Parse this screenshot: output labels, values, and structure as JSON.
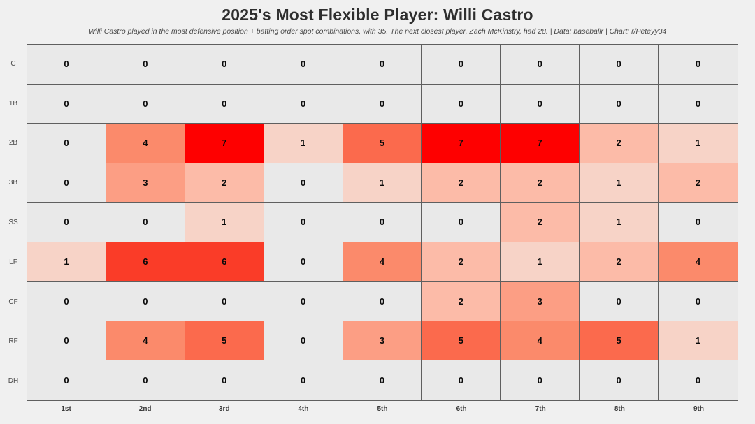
{
  "header": {
    "title": "2025's Most Flexible Player: Willi Castro",
    "subtitle": "Willi Castro played in the most defensive position + batting order spot combinations, with 35. The next closest player, Zach McKinstry, had 28. | Data: baseballr | Chart: r/Peteyy34"
  },
  "chart_data": {
    "type": "heatmap",
    "title": "2025's Most Flexible Player: Willi Castro",
    "subtitle": "Willi Castro played in the most defensive position + batting order spot combinations, with 35. The next closest player, Zach McKinstry, had 28. | Data: baseballr | Chart: r/Peteyy34",
    "xlabel": "",
    "ylabel": "",
    "rows": [
      "C",
      "1B",
      "2B",
      "3B",
      "SS",
      "LF",
      "CF",
      "RF",
      "DH"
    ],
    "columns": [
      "1st",
      "2nd",
      "3rd",
      "4th",
      "5th",
      "6th",
      "7th",
      "8th",
      "9th"
    ],
    "values": [
      [
        0,
        0,
        0,
        0,
        0,
        0,
        0,
        0,
        0
      ],
      [
        0,
        0,
        0,
        0,
        0,
        0,
        0,
        0,
        0
      ],
      [
        0,
        4,
        7,
        1,
        5,
        7,
        7,
        2,
        1
      ],
      [
        0,
        3,
        2,
        0,
        1,
        2,
        2,
        1,
        2
      ],
      [
        0,
        0,
        1,
        0,
        0,
        0,
        2,
        1,
        0
      ],
      [
        1,
        6,
        6,
        0,
        4,
        2,
        1,
        2,
        4
      ],
      [
        0,
        0,
        0,
        0,
        0,
        2,
        3,
        0,
        0
      ],
      [
        0,
        4,
        5,
        0,
        3,
        5,
        4,
        5,
        1
      ],
      [
        0,
        0,
        0,
        0,
        0,
        0,
        0,
        0,
        0
      ]
    ],
    "value_range": [
      0,
      7
    ],
    "colormap": "Reds",
    "value_colors": {
      "0": "#E9E9E9",
      "1": "#F7D3C7",
      "2": "#FCBBA8",
      "3": "#FC9E84",
      "4": "#FB8A6B",
      "5": "#FB6A4D",
      "6": "#FA3C28",
      "7": "#FE0000"
    },
    "grid_border_color": "#5F5F5F",
    "background_color": "#F0F0F0",
    "legend": "none"
  }
}
